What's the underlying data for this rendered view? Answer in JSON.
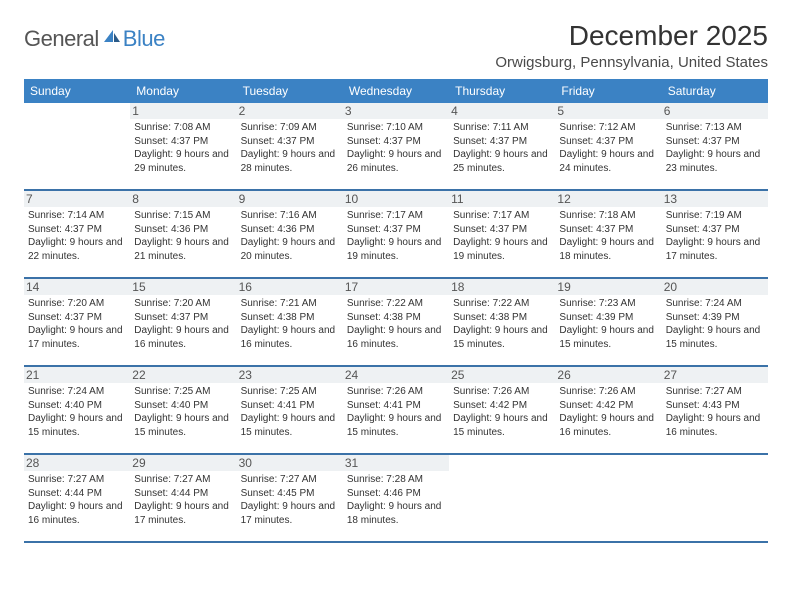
{
  "logo": {
    "text1": "General",
    "text2": "Blue"
  },
  "title": "December 2025",
  "location": "Orwigsburg, Pennsylvania, United States",
  "colors": {
    "header_bg": "#3b82c4",
    "header_text": "#ffffff",
    "row_border": "#3b72a8",
    "daynum_bg": "#eef1f3",
    "logo_blue": "#3b82c4",
    "text": "#333333"
  },
  "day_headers": [
    "Sunday",
    "Monday",
    "Tuesday",
    "Wednesday",
    "Thursday",
    "Friday",
    "Saturday"
  ],
  "weeks": [
    [
      null,
      {
        "n": "1",
        "sr": "7:08 AM",
        "ss": "4:37 PM",
        "dl": "9 hours and 29 minutes."
      },
      {
        "n": "2",
        "sr": "7:09 AM",
        "ss": "4:37 PM",
        "dl": "9 hours and 28 minutes."
      },
      {
        "n": "3",
        "sr": "7:10 AM",
        "ss": "4:37 PM",
        "dl": "9 hours and 26 minutes."
      },
      {
        "n": "4",
        "sr": "7:11 AM",
        "ss": "4:37 PM",
        "dl": "9 hours and 25 minutes."
      },
      {
        "n": "5",
        "sr": "7:12 AM",
        "ss": "4:37 PM",
        "dl": "9 hours and 24 minutes."
      },
      {
        "n": "6",
        "sr": "7:13 AM",
        "ss": "4:37 PM",
        "dl": "9 hours and 23 minutes."
      }
    ],
    [
      {
        "n": "7",
        "sr": "7:14 AM",
        "ss": "4:37 PM",
        "dl": "9 hours and 22 minutes."
      },
      {
        "n": "8",
        "sr": "7:15 AM",
        "ss": "4:36 PM",
        "dl": "9 hours and 21 minutes."
      },
      {
        "n": "9",
        "sr": "7:16 AM",
        "ss": "4:36 PM",
        "dl": "9 hours and 20 minutes."
      },
      {
        "n": "10",
        "sr": "7:17 AM",
        "ss": "4:37 PM",
        "dl": "9 hours and 19 minutes."
      },
      {
        "n": "11",
        "sr": "7:17 AM",
        "ss": "4:37 PM",
        "dl": "9 hours and 19 minutes."
      },
      {
        "n": "12",
        "sr": "7:18 AM",
        "ss": "4:37 PM",
        "dl": "9 hours and 18 minutes."
      },
      {
        "n": "13",
        "sr": "7:19 AM",
        "ss": "4:37 PM",
        "dl": "9 hours and 17 minutes."
      }
    ],
    [
      {
        "n": "14",
        "sr": "7:20 AM",
        "ss": "4:37 PM",
        "dl": "9 hours and 17 minutes."
      },
      {
        "n": "15",
        "sr": "7:20 AM",
        "ss": "4:37 PM",
        "dl": "9 hours and 16 minutes."
      },
      {
        "n": "16",
        "sr": "7:21 AM",
        "ss": "4:38 PM",
        "dl": "9 hours and 16 minutes."
      },
      {
        "n": "17",
        "sr": "7:22 AM",
        "ss": "4:38 PM",
        "dl": "9 hours and 16 minutes."
      },
      {
        "n": "18",
        "sr": "7:22 AM",
        "ss": "4:38 PM",
        "dl": "9 hours and 15 minutes."
      },
      {
        "n": "19",
        "sr": "7:23 AM",
        "ss": "4:39 PM",
        "dl": "9 hours and 15 minutes."
      },
      {
        "n": "20",
        "sr": "7:24 AM",
        "ss": "4:39 PM",
        "dl": "9 hours and 15 minutes."
      }
    ],
    [
      {
        "n": "21",
        "sr": "7:24 AM",
        "ss": "4:40 PM",
        "dl": "9 hours and 15 minutes."
      },
      {
        "n": "22",
        "sr": "7:25 AM",
        "ss": "4:40 PM",
        "dl": "9 hours and 15 minutes."
      },
      {
        "n": "23",
        "sr": "7:25 AM",
        "ss": "4:41 PM",
        "dl": "9 hours and 15 minutes."
      },
      {
        "n": "24",
        "sr": "7:26 AM",
        "ss": "4:41 PM",
        "dl": "9 hours and 15 minutes."
      },
      {
        "n": "25",
        "sr": "7:26 AM",
        "ss": "4:42 PM",
        "dl": "9 hours and 15 minutes."
      },
      {
        "n": "26",
        "sr": "7:26 AM",
        "ss": "4:42 PM",
        "dl": "9 hours and 16 minutes."
      },
      {
        "n": "27",
        "sr": "7:27 AM",
        "ss": "4:43 PM",
        "dl": "9 hours and 16 minutes."
      }
    ],
    [
      {
        "n": "28",
        "sr": "7:27 AM",
        "ss": "4:44 PM",
        "dl": "9 hours and 16 minutes."
      },
      {
        "n": "29",
        "sr": "7:27 AM",
        "ss": "4:44 PM",
        "dl": "9 hours and 17 minutes."
      },
      {
        "n": "30",
        "sr": "7:27 AM",
        "ss": "4:45 PM",
        "dl": "9 hours and 17 minutes."
      },
      {
        "n": "31",
        "sr": "7:28 AM",
        "ss": "4:46 PM",
        "dl": "9 hours and 18 minutes."
      },
      null,
      null,
      null
    ]
  ],
  "labels": {
    "sunrise": "Sunrise: ",
    "sunset": "Sunset: ",
    "daylight": "Daylight: "
  }
}
